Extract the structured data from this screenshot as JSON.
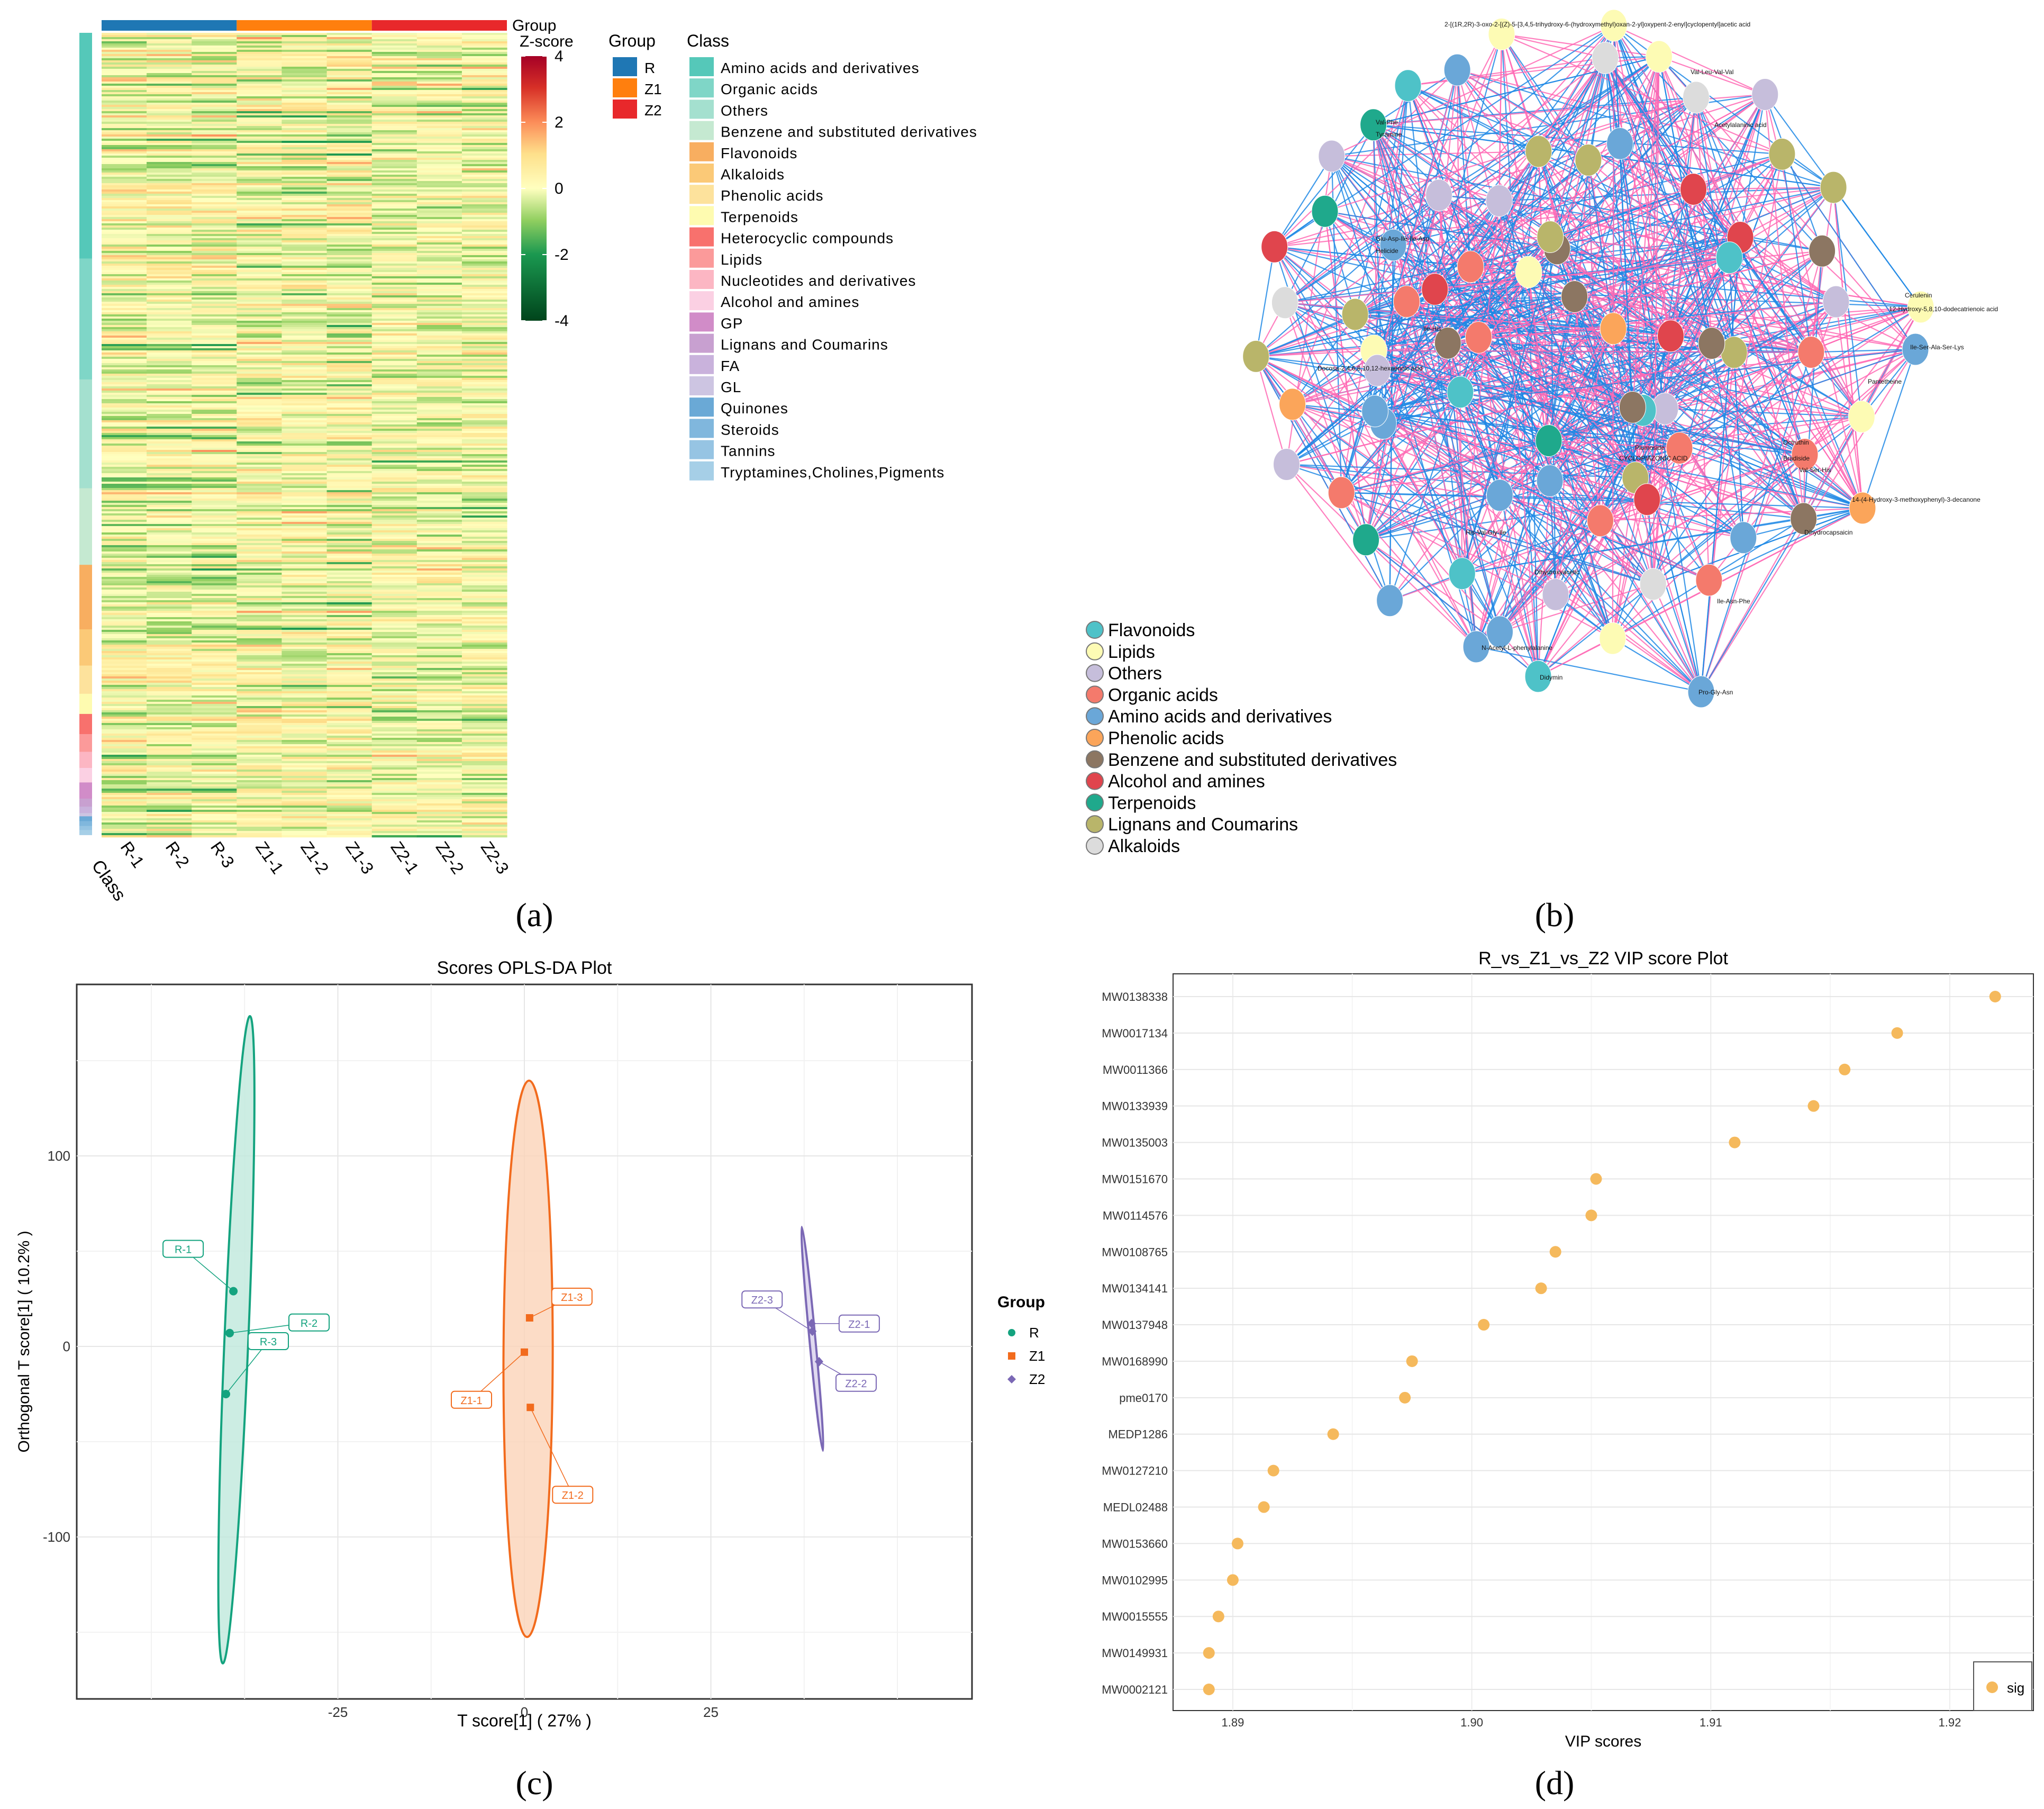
{
  "figure_labels": {
    "a": "(a)",
    "b": "(b)",
    "c": "(c)",
    "d": "(d)"
  },
  "colors": {
    "R": "#1f77b4",
    "Z1": "#ff7f0e",
    "Z2": "#e8282b",
    "opls_R": "#14a37f",
    "opls_Z1": "#f26b1d",
    "opls_Z2": "#7b68b5",
    "vip_point": "#f5b95c",
    "net_pos": "#ff69b4",
    "net_neg": "#1e88e5"
  },
  "chart_data": [
    {
      "id": "a",
      "type": "heatmap",
      "columns": [
        "R-1",
        "R-2",
        "R-3",
        "Z1-1",
        "Z1-2",
        "Z1-3",
        "Z2-1",
        "Z2-2",
        "Z2-3"
      ],
      "class_axis_label": "Class",
      "group_annotation_label": "Group",
      "groups": [
        {
          "name": "R",
          "color": "#1f77b4"
        },
        {
          "name": "Z1",
          "color": "#ff7f0e"
        },
        {
          "name": "Z2",
          "color": "#e8282b"
        }
      ],
      "zscore_title": "Z-score",
      "zscore_ticks": [
        4,
        2,
        0,
        -2,
        -4
      ],
      "zscore_range": [
        -4,
        4
      ],
      "group_legend_title": "Group",
      "class_legend_title": "Class",
      "classes": [
        {
          "name": "Amino acids and derivatives",
          "color": "#55c8b9",
          "share": 0.28
        },
        {
          "name": "Organic acids",
          "color": "#7fd6c7",
          "share": 0.15
        },
        {
          "name": "Others",
          "color": "#a4e0cf",
          "share": 0.135
        },
        {
          "name": "Benzene and substituted derivatives",
          "color": "#c5e9d1",
          "share": 0.095
        },
        {
          "name": "Flavonoids",
          "color": "#f8ae60",
          "share": 0.08
        },
        {
          "name": "Alkaloids",
          "color": "#fbc977",
          "share": 0.045
        },
        {
          "name": "Phenolic acids",
          "color": "#fde29c",
          "share": 0.035
        },
        {
          "name": "Terpenoids",
          "color": "#fefbb0",
          "share": 0.025
        },
        {
          "name": "Heterocyclic compounds",
          "color": "#f8716d",
          "share": 0.025
        },
        {
          "name": "Lipids",
          "color": "#fb9a9a",
          "share": 0.022
        },
        {
          "name": "Nucleotides and derivatives",
          "color": "#fcb6c3",
          "share": 0.02
        },
        {
          "name": "Alcohol and amines",
          "color": "#fbd0e3",
          "share": 0.018
        },
        {
          "name": "GP",
          "color": "#d18cc8",
          "share": 0.02
        },
        {
          "name": "Lignans and Coumarins",
          "color": "#c8a0d0",
          "share": 0.01
        },
        {
          "name": "FA",
          "color": "#c9b2dc",
          "share": 0.008
        },
        {
          "name": "GL",
          "color": "#cdc5e2",
          "share": 0.004
        },
        {
          "name": "Quinones",
          "color": "#6aa9d6",
          "share": 0.006
        },
        {
          "name": "Steroids",
          "color": "#80b7dd",
          "share": 0.006
        },
        {
          "name": "Tannins",
          "color": "#96c4e3",
          "share": 0.005
        },
        {
          "name": "Tryptamines,Cholines,Pigments",
          "color": "#a6cfe7",
          "share": 0.006
        }
      ]
    },
    {
      "id": "b",
      "type": "network",
      "legend": [
        {
          "name": "Flavonoids",
          "color": "#4ec2c8"
        },
        {
          "name": "Lipids",
          "color": "#fdfbb4"
        },
        {
          "name": "Others",
          "color": "#c6bedb"
        },
        {
          "name": "Organic acids",
          "color": "#f47a6c"
        },
        {
          "name": "Amino acids and derivatives",
          "color": "#6aa7d8"
        },
        {
          "name": "Phenolic acids",
          "color": "#fba55a"
        },
        {
          "name": "Benzene and substituted derivatives",
          "color": "#8c7662"
        },
        {
          "name": "Alcohol and amines",
          "color": "#e0454d"
        },
        {
          "name": "Terpenoids",
          "color": "#1fa98c"
        },
        {
          "name": "Lignans and Coumarins",
          "color": "#b9b56a"
        },
        {
          "name": "Alkaloids",
          "color": "#dcdcdc"
        }
      ],
      "node_labels": [
        "2-[(1R,2R)-3-oxo-2-[(Z)-5-[3,4,5-trihydroxy-6-(hydroxymethyl)oxan-2-yl]oxypent-2-enyl]cyclopentyl]acetic acid",
        "Val-Leu-Val-Val",
        "Val-Phe",
        "Tyramine",
        "Acetylalaninic acid",
        "Glu-Asp-Ile-Ile-Asp",
        "Helicide",
        "Docosa-2,4,6,8,10,12-hexaenoic acid",
        "Ile-His",
        "Didymin",
        "Pro-Gly-Asn",
        "N-Acetyl-L-phenylalanine",
        "His-Val-Gly-Ile",
        "Ile-Asn-Phe",
        "Dihydroxyacetic",
        "Ile-Ser-Ala-Ser-Lys",
        "Pantetheine",
        "Octruthin",
        "Bradiside",
        "Val-Ser-His",
        "CYCLOPIAZONIC ACID",
        "Plumoside",
        "Dihydrocapsaicin",
        "14-(4-Hydroxy-3-methoxyphenyl)-3-decanone",
        "Cerulenin",
        "12-Hydroxy-5,8,10-dodecatrienoic acid"
      ],
      "positive_edge_color": "#ff69b4",
      "negative_edge_color": "#1e88e5"
    },
    {
      "id": "c",
      "type": "scatter",
      "title": "Scores OPLS-DA Plot",
      "xlabel": "T score[1] ( 27% )",
      "ylabel": "Orthogonal T score[1] ( 10.2% )",
      "xlim": [
        -60,
        60
      ],
      "ylim": [
        -185,
        190
      ],
      "xticks": [
        -25,
        0,
        25
      ],
      "yticks": [
        -100,
        0,
        100
      ],
      "legend_title": "Group",
      "series": [
        {
          "name": "R",
          "color": "#14a37f",
          "marker": "circle",
          "points": [
            {
              "label": "R-1",
              "x": -39,
              "y": 29
            },
            {
              "label": "R-2",
              "x": -39.5,
              "y": 7
            },
            {
              "label": "R-3",
              "x": -40,
              "y": -25
            }
          ],
          "ellipse": {
            "cx": -38.6,
            "cy": 3.5,
            "rx": 1.6,
            "ry": 170,
            "angle_deg": 2.4
          }
        },
        {
          "name": "Z1",
          "color": "#f26b1d",
          "marker": "square",
          "points": [
            {
              "label": "Z1-1",
              "x": 0,
              "y": -3
            },
            {
              "label": "Z1-2",
              "x": 0.8,
              "y": -32
            },
            {
              "label": "Z1-3",
              "x": 0.7,
              "y": 15
            }
          ],
          "ellipse": {
            "cx": 0.5,
            "cy": -6.5,
            "rx": 3.3,
            "ry": 146,
            "angle_deg": 0.2
          }
        },
        {
          "name": "Z2",
          "color": "#7b68b5",
          "marker": "diamond",
          "points": [
            {
              "label": "Z2-1",
              "x": 38.5,
              "y": 12
            },
            {
              "label": "Z2-2",
              "x": 39.5,
              "y": -8
            },
            {
              "label": "Z2-3",
              "x": 38.6,
              "y": 8
            }
          ],
          "ellipse": {
            "cx": 38.6,
            "cy": 4,
            "rx": 0.4,
            "ry": 59,
            "angle_deg": -5.4
          }
        }
      ]
    },
    {
      "id": "d",
      "type": "scatter",
      "title": "R_vs_Z1_vs_Z2 VIP score Plot",
      "xlabel": "VIP scores",
      "xlim": [
        1.8875,
        1.9235
      ],
      "xticks": [
        1.89,
        1.9,
        1.91,
        1.92
      ],
      "xtick_labels": [
        "1.89",
        "1.90",
        "1.91",
        "1.92"
      ],
      "legend": "sig",
      "series": [
        {
          "name": "sig",
          "color": "#f5b95c",
          "points": [
            {
              "label": "MW0138338",
              "x": 1.9219
            },
            {
              "label": "MW0017134",
              "x": 1.9178
            },
            {
              "label": "MW0011366",
              "x": 1.9156
            },
            {
              "label": "MW0133939",
              "x": 1.9143
            },
            {
              "label": "MW0135003",
              "x": 1.911
            },
            {
              "label": "MW0151670",
              "x": 1.9052
            },
            {
              "label": "MW0114576",
              "x": 1.905
            },
            {
              "label": "MW0108765",
              "x": 1.9035
            },
            {
              "label": "MW0134141",
              "x": 1.9029
            },
            {
              "label": "MW0137948",
              "x": 1.9005
            },
            {
              "label": "MW0168990",
              "x": 1.8975
            },
            {
              "label": "pme0170",
              "x": 1.8972
            },
            {
              "label": "MEDP1286",
              "x": 1.8942
            },
            {
              "label": "MW0127210",
              "x": 1.8917
            },
            {
              "label": "MEDL02488",
              "x": 1.8913
            },
            {
              "label": "MW0153660",
              "x": 1.8902
            },
            {
              "label": "MW0102995",
              "x": 1.89
            },
            {
              "label": "MW0015555",
              "x": 1.8894
            },
            {
              "label": "MW0149931",
              "x": 1.889
            },
            {
              "label": "MW0002121",
              "x": 1.889
            }
          ]
        }
      ]
    }
  ]
}
